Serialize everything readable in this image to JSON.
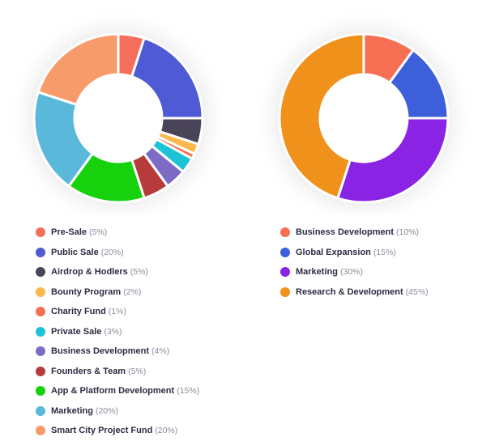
{
  "chart_data": [
    {
      "type": "pie",
      "categories": [
        "Pre-Sale",
        "Public Sale",
        "Airdrop & Hodlers",
        "Bounty Program",
        "Charity Fund",
        "Private Sale",
        "Business Development",
        "Founders & Team",
        "App & Platform Development",
        "Marketing",
        "Smart City Project Fund"
      ],
      "values": [
        5,
        20,
        5,
        2,
        1,
        3,
        4,
        5,
        15,
        20,
        20
      ],
      "value_labels": [
        "(5%)",
        "(20%)",
        "(5%)",
        "(2%)",
        "(1%)",
        "(3%)",
        "(4%)",
        "(5%)",
        "(15%)",
        "(20%)",
        "(20%)"
      ],
      "colors": [
        "#f66f5d",
        "#4f5bd5",
        "#4a4458",
        "#fcb84a",
        "#f5704f",
        "#1cc3d6",
        "#7e6bc4",
        "#b83b3b",
        "#15d20d",
        "#5ab8da",
        "#f89b6b"
      ],
      "donut": true,
      "legend_position": "bottom",
      "title": "",
      "xlabel": "",
      "ylabel": ""
    },
    {
      "type": "pie",
      "categories": [
        "Business Development",
        "Global Expansion",
        "Marketing",
        "Research & Development"
      ],
      "values": [
        10,
        15,
        30,
        45
      ],
      "value_labels": [
        "(10%)",
        "(15%)",
        "(30%)",
        "(45%)"
      ],
      "colors": [
        "#f66f52",
        "#3d5fd9",
        "#8a23e4",
        "#f0911c"
      ],
      "donut": true,
      "legend_position": "bottom",
      "title": "",
      "xlabel": "",
      "ylabel": ""
    }
  ]
}
